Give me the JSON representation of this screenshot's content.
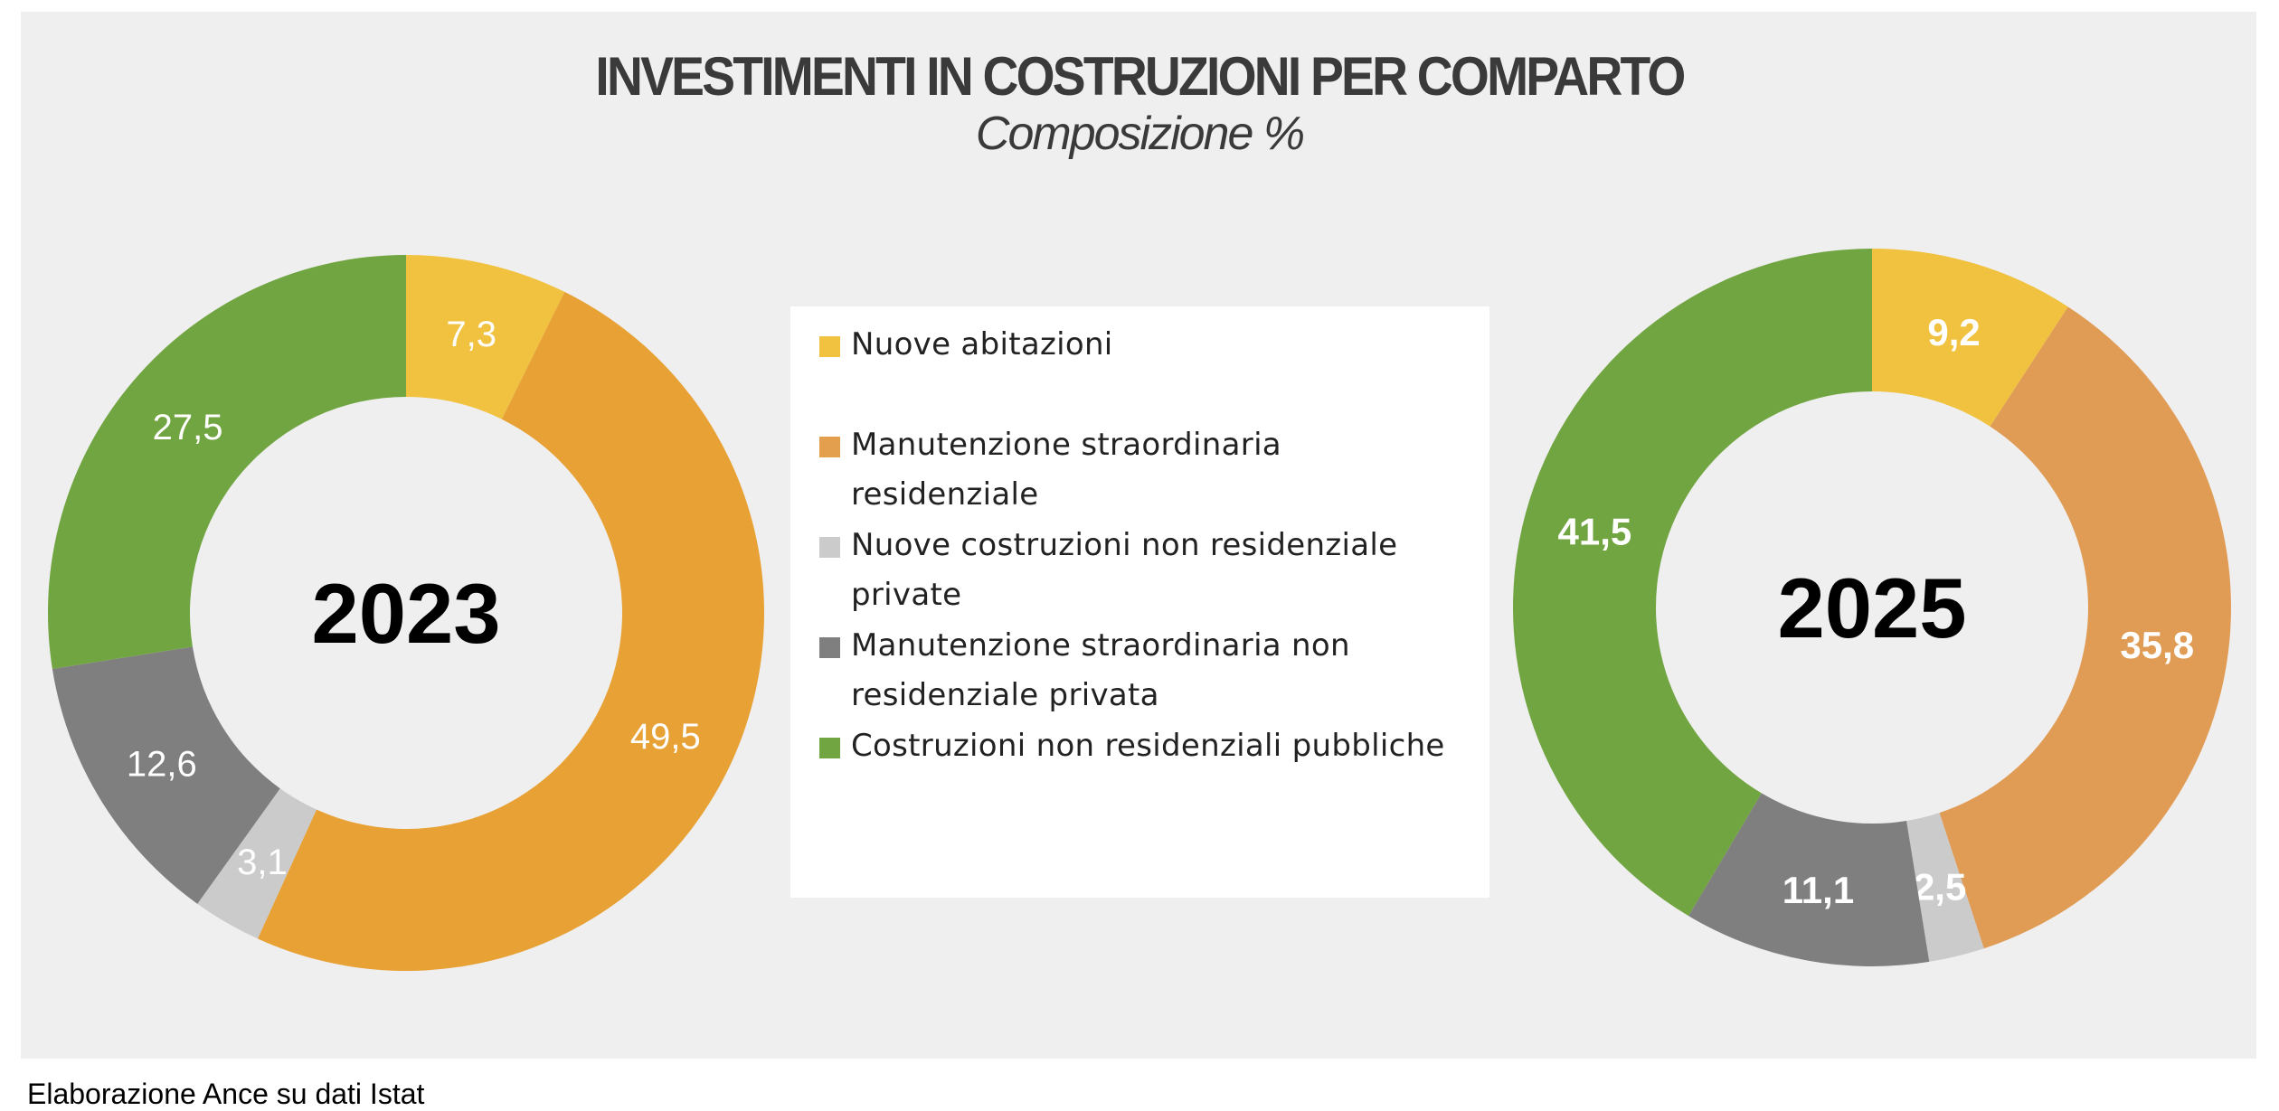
{
  "chart_data": [
    {
      "type": "pie",
      "variant": "donut",
      "title": "INVESTIMENTI IN COSTRUZIONI PER COMPARTO",
      "subtitle": "Composizione %",
      "center_label": "2023",
      "categories": [
        "Nuove abitazioni",
        "Manutenzione straordinaria residenziale",
        "Nuove costruzioni non residenziale private",
        "Manutenzione straordinaria non residenziale privata",
        "Costruzioni non residenziali pubbliche"
      ],
      "values": [
        7.3,
        49.5,
        3.1,
        12.6,
        27.5
      ],
      "data_labels": [
        "7,3",
        "49,5",
        "3,1",
        "12,6",
        "27,5"
      ],
      "colors": [
        "#F0C23F",
        "#E8A135",
        "#CBCBCB",
        "#7F7F7F",
        "#71A541"
      ]
    },
    {
      "type": "pie",
      "variant": "donut",
      "center_label": "2025",
      "categories": [
        "Nuove abitazioni",
        "Manutenzione straordinaria residenziale",
        "Nuove costruzioni non residenziale private",
        "Manutenzione straordinaria non residenziale privata",
        "Costruzioni non residenziali pubbliche"
      ],
      "values": [
        9.2,
        35.8,
        2.5,
        11.1,
        41.5
      ],
      "data_labels": [
        "9,2",
        "35,8",
        "2,5",
        "11,1",
        "41,5"
      ],
      "colors": [
        "#F0C23F",
        "#E09C55",
        "#CBCBCB",
        "#7F7F7F",
        "#71A541"
      ]
    }
  ],
  "header": {
    "title": "INVESTIMENTI IN COSTRUZIONI PER COMPARTO",
    "subtitle": "Composizione %"
  },
  "legend": {
    "placement": "center",
    "items": [
      {
        "label": "Nuove abitazioni",
        "color": "#F0C23F"
      },
      {
        "label": "Manutenzione straordinaria residenziale",
        "color": "#E39F4E"
      },
      {
        "label": "Nuove costruzioni non residenziale private",
        "color": "#CBCBCB"
      },
      {
        "label": "Manutenzione straordinaria non residenziale privata",
        "color": "#7F7F7F"
      },
      {
        "label": "Costruzioni non residenziali pubbliche",
        "color": "#71A541"
      }
    ]
  },
  "footer": {
    "source": "Elaborazione Ance su dati Istat"
  }
}
